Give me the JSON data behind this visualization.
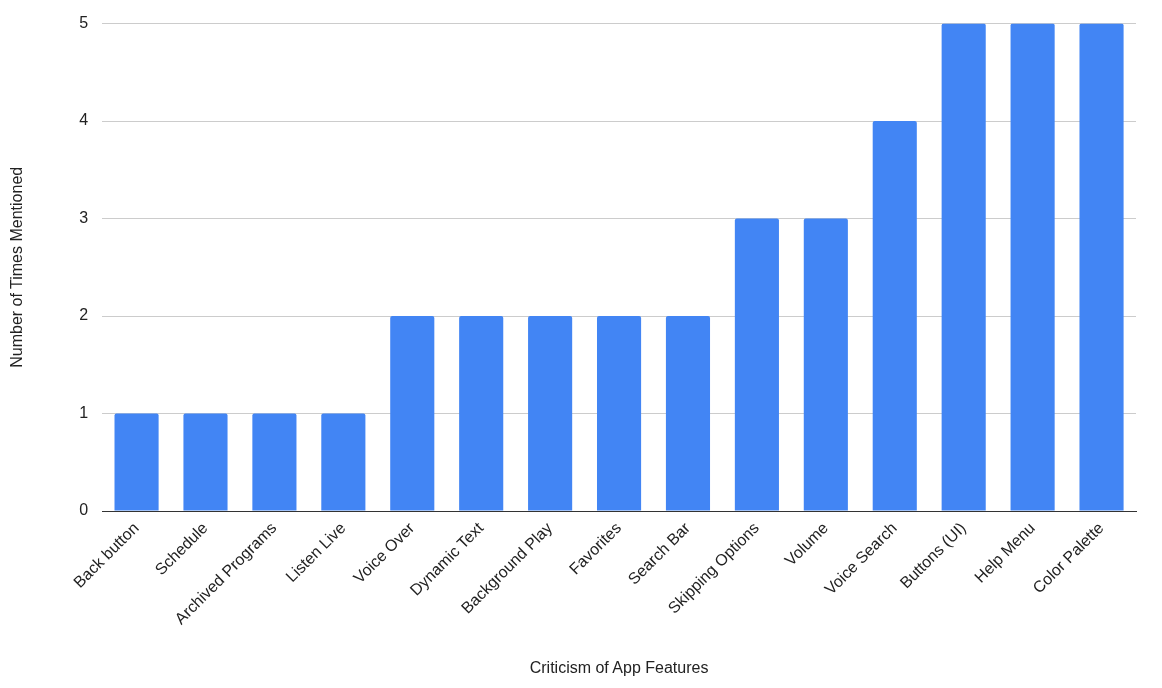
{
  "chart_data": {
    "type": "bar",
    "xlabel": "Criticism of App Features",
    "ylabel": "Number of Times Mentioned",
    "categories": [
      "Back button",
      "Schedule",
      "Archived Programs",
      "Listen Live",
      "Voice Over",
      "Dynamic Text",
      "Background Play",
      "Favorites",
      "Search Bar",
      "Skipping Options",
      "Volume",
      "Voice Search",
      "Buttons (UI)",
      "Help Menu",
      "Color Palette"
    ],
    "values": [
      1,
      1,
      1,
      1,
      2,
      2,
      2,
      2,
      2,
      3,
      3,
      4,
      5,
      5,
      5
    ],
    "color": "#4285f4",
    "ylim": [
      0,
      5
    ],
    "yticks": [
      0,
      1,
      2,
      3,
      4,
      5
    ],
    "grid": "y"
  }
}
